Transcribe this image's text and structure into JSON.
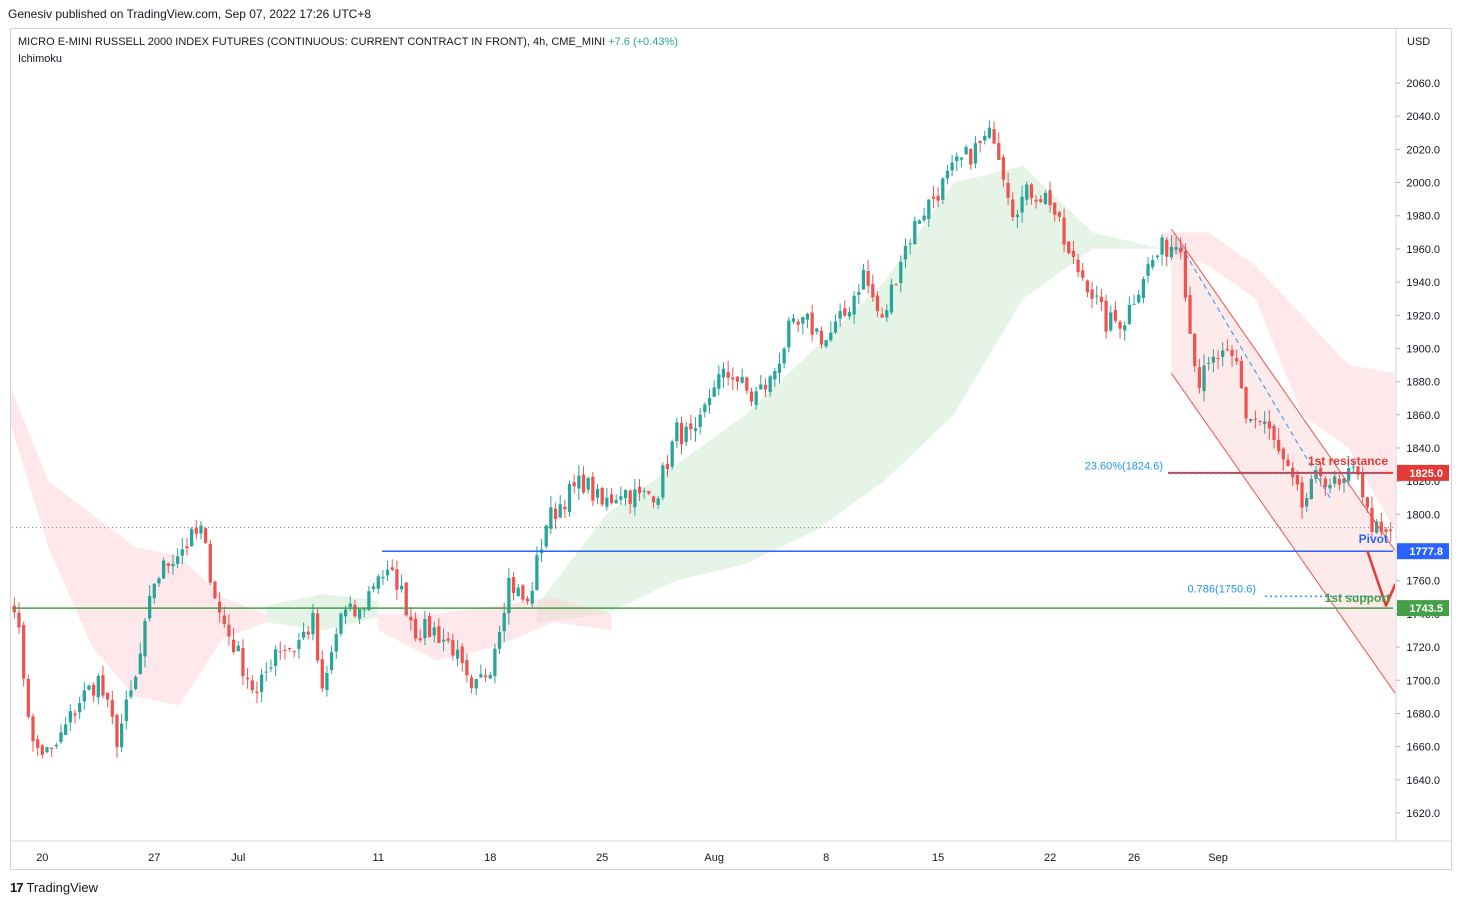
{
  "header": {
    "credit": "Genesiv published on TradingView.com, Sep 07, 2022 17:26 UTC+8",
    "symbol_title": "MICRO E-MINI RUSSELL 2000 INDEX FUTURES (CONTINUOUS: CURRENT CONTRACT IN FRONT), 4h, CME_MINI",
    "change": "+7.6 (+0.43%)",
    "indicator": "Ichimoku"
  },
  "footer": {
    "brand": "TradingView",
    "logo_glyph": "17"
  },
  "colors": {
    "up": "#26a69a",
    "down": "#ef5350",
    "resistance": "#e53935",
    "pivot": "#2962ff",
    "support": "#43a047",
    "fib": "#2196f3",
    "cloud_bull": "#c8e6c9",
    "cloud_bear": "#ffcdd2"
  },
  "chart_data": {
    "type": "candlestick",
    "title": "MICRO E-MINI RUSSELL 2000 INDEX FUTURES (CONTINUOUS: CURRENT CONTRACT IN FRONT), 4h, CME_MINI",
    "currency": "USD",
    "ylim": [
      1600,
      2080
    ],
    "y_ticks": [
      1620,
      1640,
      1660,
      1680,
      1700,
      1720,
      1740,
      1760,
      1780,
      1800,
      1820,
      1840,
      1860,
      1880,
      1900,
      1920,
      1940,
      1960,
      1980,
      2000,
      2020,
      2040,
      2060
    ],
    "y_tick_labels": [
      "1620.0",
      "1640.0",
      "1660.0",
      "1680.0",
      "1700.0",
      "1720.0",
      "1740.0",
      "1760.0",
      "1780.0",
      "1800.0",
      "1820.0",
      "1840.0",
      "1860.0",
      "1880.0",
      "1900.0",
      "1920.0",
      "1940.0",
      "1960.0",
      "1980.0",
      "2000.0",
      "2020.0",
      "2040.0",
      "2060.0"
    ],
    "x_ticks": [
      {
        "label": "20",
        "bar": 6
      },
      {
        "label": "27",
        "bar": 30
      },
      {
        "label": "Jul",
        "bar": 48
      },
      {
        "label": "11",
        "bar": 78
      },
      {
        "label": "18",
        "bar": 102
      },
      {
        "label": "25",
        "bar": 126
      },
      {
        "label": "Aug",
        "bar": 150
      },
      {
        "label": "8",
        "bar": 174
      },
      {
        "label": "15",
        "bar": 198
      },
      {
        "label": "22",
        "bar": 222
      },
      {
        "label": "26",
        "bar": 240
      },
      {
        "label": "Sep",
        "bar": 258
      }
    ],
    "total_bars": 296,
    "waypoints": [
      {
        "bar": 0,
        "close": 1748
      },
      {
        "bar": 4,
        "close": 1660
      },
      {
        "bar": 8,
        "close": 1655
      },
      {
        "bar": 14,
        "close": 1688
      },
      {
        "bar": 18,
        "close": 1700
      },
      {
        "bar": 22,
        "close": 1665
      },
      {
        "bar": 26,
        "close": 1700
      },
      {
        "bar": 30,
        "close": 1760
      },
      {
        "bar": 34,
        "close": 1775
      },
      {
        "bar": 40,
        "close": 1790
      },
      {
        "bar": 44,
        "close": 1740
      },
      {
        "bar": 48,
        "close": 1715
      },
      {
        "bar": 52,
        "close": 1690
      },
      {
        "bar": 56,
        "close": 1720
      },
      {
        "bar": 60,
        "close": 1720
      },
      {
        "bar": 64,
        "close": 1735
      },
      {
        "bar": 66,
        "close": 1690
      },
      {
        "bar": 70,
        "close": 1740
      },
      {
        "bar": 74,
        "close": 1740
      },
      {
        "bar": 78,
        "close": 1765
      },
      {
        "bar": 82,
        "close": 1760
      },
      {
        "bar": 86,
        "close": 1730
      },
      {
        "bar": 90,
        "close": 1730
      },
      {
        "bar": 94,
        "close": 1720
      },
      {
        "bar": 98,
        "close": 1690
      },
      {
        "bar": 102,
        "close": 1710
      },
      {
        "bar": 106,
        "close": 1760
      },
      {
        "bar": 110,
        "close": 1745
      },
      {
        "bar": 114,
        "close": 1795
      },
      {
        "bar": 118,
        "close": 1810
      },
      {
        "bar": 122,
        "close": 1820
      },
      {
        "bar": 126,
        "close": 1805
      },
      {
        "bar": 130,
        "close": 1815
      },
      {
        "bar": 134,
        "close": 1810
      },
      {
        "bar": 138,
        "close": 1815
      },
      {
        "bar": 142,
        "close": 1850
      },
      {
        "bar": 146,
        "close": 1845
      },
      {
        "bar": 150,
        "close": 1880
      },
      {
        "bar": 154,
        "close": 1885
      },
      {
        "bar": 158,
        "close": 1870
      },
      {
        "bar": 162,
        "close": 1880
      },
      {
        "bar": 166,
        "close": 1910
      },
      {
        "bar": 170,
        "close": 1915
      },
      {
        "bar": 174,
        "close": 1905
      },
      {
        "bar": 178,
        "close": 1920
      },
      {
        "bar": 182,
        "close": 1945
      },
      {
        "bar": 186,
        "close": 1915
      },
      {
        "bar": 190,
        "close": 1955
      },
      {
        "bar": 194,
        "close": 1980
      },
      {
        "bar": 198,
        "close": 1995
      },
      {
        "bar": 202,
        "close": 2010
      },
      {
        "bar": 206,
        "close": 2020
      },
      {
        "bar": 210,
        "close": 2030
      },
      {
        "bar": 214,
        "close": 1985
      },
      {
        "bar": 218,
        "close": 1995
      },
      {
        "bar": 222,
        "close": 1990
      },
      {
        "bar": 226,
        "close": 1955
      },
      {
        "bar": 230,
        "close": 1940
      },
      {
        "bar": 234,
        "close": 1915
      },
      {
        "bar": 238,
        "close": 1918
      },
      {
        "bar": 242,
        "close": 1945
      },
      {
        "bar": 246,
        "close": 1960
      },
      {
        "bar": 250,
        "close": 1965
      },
      {
        "bar": 252,
        "close": 1910
      },
      {
        "bar": 254,
        "close": 1880
      },
      {
        "bar": 258,
        "close": 1895
      },
      {
        "bar": 262,
        "close": 1890
      },
      {
        "bar": 264,
        "close": 1860
      },
      {
        "bar": 268,
        "close": 1855
      },
      {
        "bar": 272,
        "close": 1830
      },
      {
        "bar": 276,
        "close": 1805
      },
      {
        "bar": 280,
        "close": 1825
      },
      {
        "bar": 284,
        "close": 1815
      },
      {
        "bar": 288,
        "close": 1828
      },
      {
        "bar": 290,
        "close": 1800
      },
      {
        "bar": 293,
        "close": 1785
      },
      {
        "bar": 295,
        "close": 1790
      }
    ],
    "levels": [
      {
        "name": "1st resistance",
        "value": 1825.0,
        "label": "1825.0",
        "text": "1st resistance"
      },
      {
        "name": "Pivot",
        "value": 1777.8,
        "label": "1777.8",
        "text": "Pivot"
      },
      {
        "name": "1st support",
        "value": 1743.5,
        "label": "1743.5",
        "text": "1st support"
      }
    ],
    "fib_levels": [
      {
        "label": "23.60%(1824.6)",
        "value": 1824.6
      },
      {
        "label": "0.786(1750.6)",
        "value": 1750.6
      }
    ],
    "last_price_line": 1792,
    "channel": {
      "upper_start": {
        "bar": 248,
        "value": 1972
      },
      "upper_end": {
        "bar": 296,
        "value": 1778
      },
      "lower_start": {
        "bar": 248,
        "value": 1885
      },
      "lower_end": {
        "bar": 296,
        "value": 1692
      },
      "mid_start": {
        "bar": 250,
        "value": 1962
      },
      "mid_end": {
        "bar": 282,
        "value": 1810
      }
    },
    "projection_arrow": [
      {
        "bar": 290,
        "value": 1778
      },
      {
        "bar": 294,
        "value": 1745
      },
      {
        "bar": 296,
        "value": 1758
      }
    ],
    "cloud": {
      "bull_segments": [
        {
          "from_bar": 54,
          "to_bar": 78,
          "top": [
            1745,
            1752,
            1748
          ],
          "bottom": [
            1735,
            1730,
            1738
          ]
        },
        {
          "from_bar": 112,
          "to_bar": 246,
          "top": [
            1745,
            1800,
            1830,
            1860,
            1900,
            1940,
            2000,
            2010,
            1970,
            1960
          ],
          "bottom": [
            1735,
            1740,
            1760,
            1770,
            1790,
            1820,
            1860,
            1930,
            1960,
            1960
          ]
        }
      ],
      "bear_segments": [
        {
          "from_bar": -2,
          "to_bar": 54,
          "top": [
            1885,
            1820,
            1800,
            1780,
            1775,
            1750,
            1740
          ],
          "bottom": [
            1865,
            1780,
            1720,
            1690,
            1685,
            1725,
            1735
          ]
        },
        {
          "from_bar": 78,
          "to_bar": 128,
          "top": [
            1740,
            1740,
            1745,
            1750,
            1740
          ],
          "bottom": [
            1730,
            1712,
            1720,
            1735,
            1730
          ]
        },
        {
          "from_bar": 246,
          "to_bar": 296,
          "top": [
            1970,
            1970,
            1950,
            1920,
            1890,
            1885
          ],
          "bottom": [
            1960,
            1950,
            1930,
            1860,
            1840,
            1790
          ]
        }
      ]
    }
  }
}
